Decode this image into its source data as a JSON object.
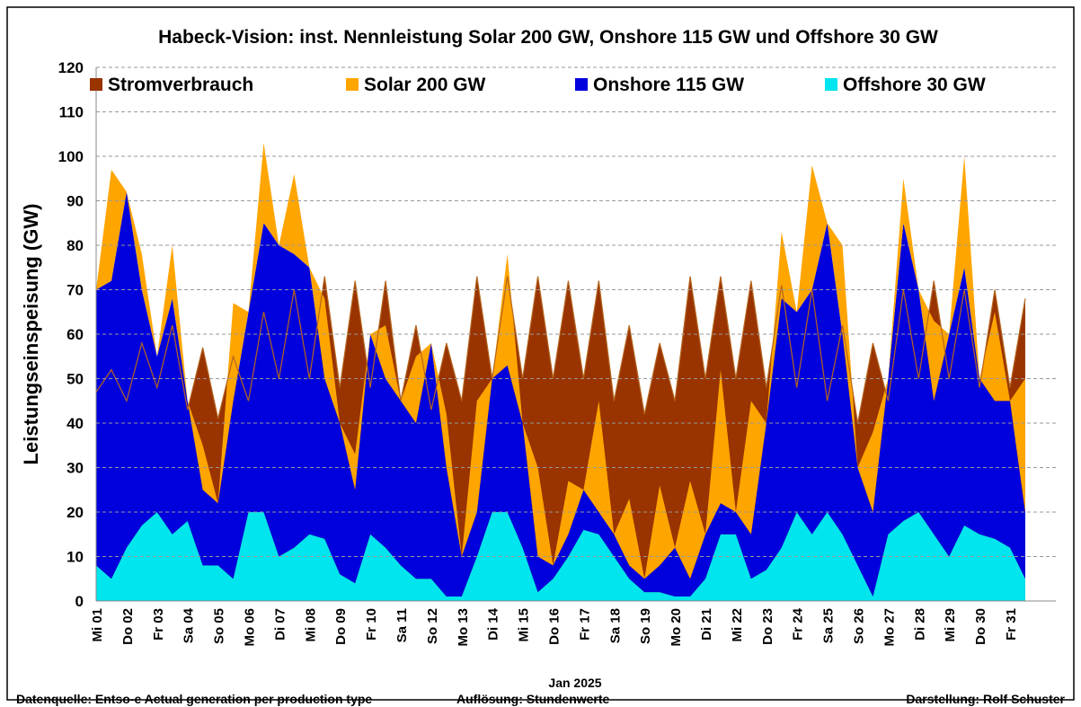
{
  "chart_data": {
    "type": "area",
    "title": "Habeck-Vision: inst. Nennleistung Solar 200 GW, Onshore 115 GW und Offshore 30 GW",
    "y_label": "Leistungseinspeisung  (GW)",
    "x_label": "Jan 2025",
    "footer_left": "Datenquelle: Entso-e  Actual generation per production type",
    "footer_mid": "Auflösung: Stundenwerte",
    "footer_right": "Darstellung:  Rolf Schuster",
    "categories": [
      "Mi 01",
      null,
      "Do 02",
      null,
      "Fr 03",
      null,
      "Sa 04",
      null,
      "So 05",
      null,
      "Mo 06",
      null,
      "Di 07",
      null,
      "Mi 08",
      null,
      "Do 09",
      null,
      "Fr 10",
      null,
      "Sa 11",
      null,
      "So 12",
      null,
      "Mo 13",
      null,
      "Di 14",
      null,
      "Mi 15",
      null,
      "Do 16",
      null,
      "Fr 17",
      null,
      "Sa 18",
      null,
      "So 19",
      null,
      "Mo 20",
      null,
      "Di 21",
      null,
      "Mi 22",
      null,
      "Do 23",
      null,
      "Fr 24",
      null,
      "Sa 25",
      null,
      "So 26",
      null,
      "Mo 27",
      null,
      "Di 28",
      null,
      "Mi 29",
      null,
      "Do 30",
      null,
      "Fr 31",
      null
    ],
    "series": [
      {
        "name": "Stromverbrauch",
        "color": "#993300",
        "values": [
          47,
          52,
          45,
          58,
          48,
          62,
          43,
          57,
          41,
          55,
          45,
          65,
          50,
          70,
          50,
          73,
          48,
          72,
          48,
          72,
          45,
          62,
          43,
          58,
          45,
          73,
          50,
          73,
          50,
          73,
          50,
          72,
          50,
          72,
          45,
          62,
          42,
          58,
          45,
          73,
          50,
          73,
          50,
          72,
          48,
          71,
          48,
          70,
          45,
          62,
          40,
          58,
          45,
          70,
          50,
          72,
          50,
          70,
          48,
          70,
          48,
          68
        ]
      },
      {
        "name": "Solar 200 GW",
        "color": "#ffa500",
        "values": [
          0,
          25,
          0,
          8,
          0,
          12,
          0,
          10,
          0,
          22,
          0,
          18,
          0,
          18,
          0,
          18,
          0,
          8,
          0,
          12,
          0,
          15,
          0,
          12,
          0,
          25,
          0,
          25,
          0,
          20,
          0,
          12,
          0,
          25,
          0,
          15,
          0,
          18,
          0,
          22,
          0,
          30,
          0,
          30,
          0,
          15,
          0,
          28,
          0,
          20,
          0,
          18,
          0,
          10,
          0,
          18,
          0,
          25,
          0,
          20,
          0,
          30
        ]
      },
      {
        "name": "Onshore 115 GW",
        "color": "#0000dd",
        "values": [
          62,
          67,
          80,
          53,
          35,
          53,
          27,
          17,
          14,
          40,
          45,
          65,
          70,
          66,
          60,
          36,
          34,
          21,
          45,
          38,
          37,
          35,
          53,
          29,
          9,
          10,
          30,
          33,
          28,
          8,
          3,
          5,
          9,
          5,
          5,
          3,
          3,
          6,
          11,
          4,
          10,
          7,
          5,
          10,
          33,
          56,
          45,
          55,
          65,
          45,
          22,
          19,
          35,
          67,
          50,
          30,
          50,
          58,
          35,
          31,
          33,
          15
        ]
      },
      {
        "name": "Offshore 30 GW",
        "color": "#00e5ee",
        "values": [
          8,
          5,
          12,
          17,
          20,
          15,
          18,
          8,
          8,
          5,
          20,
          20,
          10,
          12,
          15,
          14,
          6,
          4,
          15,
          12,
          8,
          5,
          5,
          1,
          1,
          10,
          20,
          20,
          12,
          2,
          5,
          10,
          16,
          15,
          10,
          5,
          2,
          2,
          1,
          1,
          5,
          15,
          15,
          5,
          7,
          12,
          20,
          15,
          20,
          15,
          8,
          1,
          15,
          18,
          20,
          15,
          10,
          17,
          15,
          14,
          12,
          5
        ]
      }
    ],
    "ylim": [
      0,
      120
    ],
    "yticks": [
      0,
      10,
      20,
      30,
      40,
      50,
      60,
      70,
      80,
      90,
      100,
      110,
      120
    ],
    "grid": true
  }
}
